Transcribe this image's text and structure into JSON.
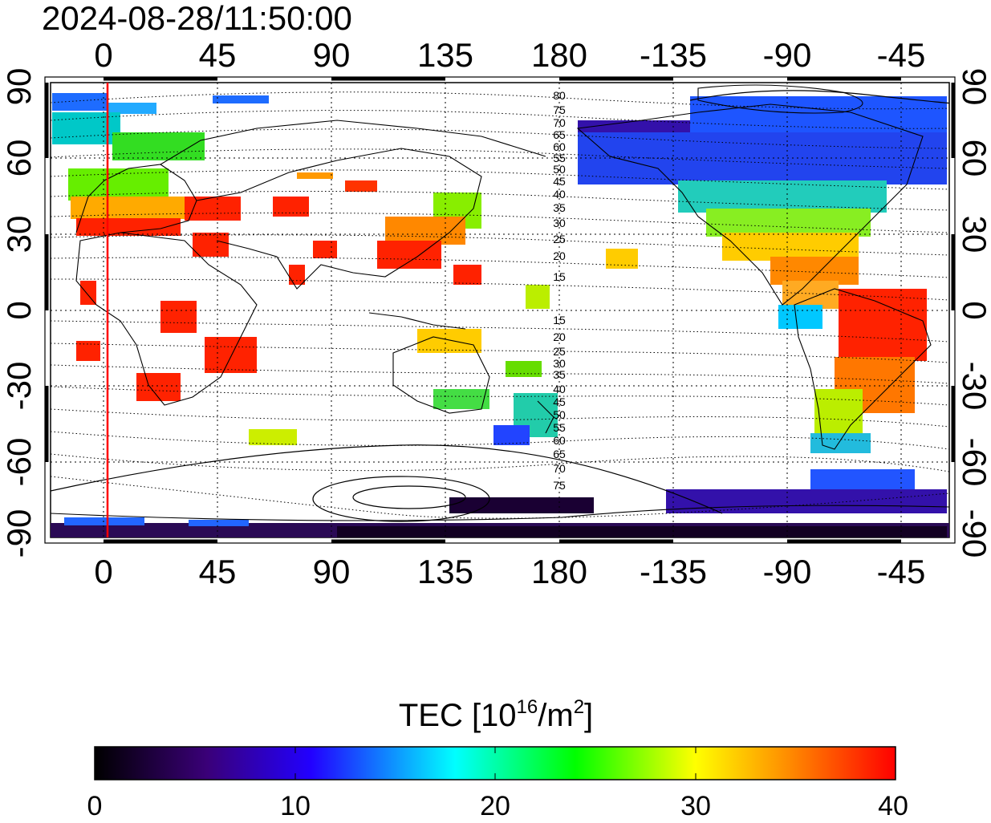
{
  "title": "2024-08-28/11:50:00",
  "map": {
    "lon_ticks": [
      "0",
      "45",
      "90",
      "135",
      "180",
      "-135",
      "-90",
      "-45"
    ],
    "lat_ticks": [
      "90",
      "60",
      "30",
      "0",
      "-30",
      "-60",
      "-90"
    ],
    "contour_labels_north": [
      "80",
      "75",
      "70",
      "65",
      "60",
      "55",
      "50",
      "45",
      "40",
      "35",
      "30",
      "25",
      "20",
      "15"
    ],
    "contour_labels_south": [
      "15",
      "20",
      "25",
      "30",
      "35",
      "40",
      "45",
      "50",
      "55",
      "60",
      "65",
      "70",
      "75"
    ],
    "terminator_color": "#ff0000",
    "grid": "dotted"
  },
  "colorbar": {
    "title_main": "TEC  [10",
    "title_sup1": "16",
    "title_mid": "/m",
    "title_sup2": "2",
    "title_end": "]",
    "ticks": [
      "0",
      "10",
      "20",
      "30",
      "40"
    ],
    "stops": [
      "#000000",
      "#3a0078",
      "#2200ff",
      "#00ffff",
      "#00ff00",
      "#ffff00",
      "#ff8800",
      "#ff0000"
    ]
  }
}
